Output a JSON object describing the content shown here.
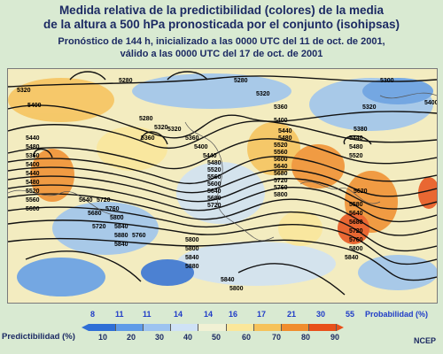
{
  "title": {
    "line1": "Medida relativa de la predictibilidad (colores) de la media",
    "line2": "de la altura a 500 hPa pronosticada por el conjunto (isohipsas)"
  },
  "subtitle": {
    "line1": "Pronóstico de 144 h, inicializado a las 0000 UTC del 11 de oct. de 2001,",
    "line2": "válido a las 0000 UTC del 17 de oct. de 2001"
  },
  "contour_labels": [
    "5280",
    "5320",
    "5400",
    "5320",
    "5360",
    "5280",
    "5320",
    "5360",
    "5400",
    "5440",
    "5480",
    "5520",
    "5560",
    "5600",
    "5640",
    "5680",
    "5720",
    "5800",
    "5840",
    "5880",
    "5720",
    "5760",
    "5800",
    "5840",
    "5880",
    "5840",
    "5800",
    "5280",
    "5320",
    "5360",
    "5400",
    "5440",
    "5480",
    "5520",
    "5560",
    "5600",
    "5640",
    "5680",
    "5720",
    "5760",
    "5800",
    "5620",
    "5580",
    "5640",
    "5680",
    "5720",
    "5760",
    "5800",
    "5840",
    "5440",
    "5480",
    "5520",
    "5300",
    "5320",
    "5380",
    "5400",
    "5440",
    "5480",
    "5360",
    "5400",
    "5440",
    "5480",
    "5520",
    "5560",
    "5600",
    "5640",
    "5680",
    "5720",
    "5760",
    "5840",
    "5800"
  ],
  "probability": {
    "label": "Probabilidad (%)",
    "values": [
      "8",
      "11",
      "11",
      "14",
      "14",
      "16",
      "17",
      "21",
      "30",
      "55"
    ]
  },
  "predictability": {
    "label": "Predictibilidad (%)",
    "ticks": [
      "10",
      "20",
      "30",
      "40",
      "50",
      "60",
      "70",
      "80",
      "90"
    ],
    "colors": [
      "#2f6fd6",
      "#5f9be8",
      "#9cc3f0",
      "#cfe2f6",
      "#f1f1d4",
      "#fbe79a",
      "#f6c25a",
      "#f08d2e",
      "#e8501a"
    ]
  },
  "credit": "NCEP"
}
